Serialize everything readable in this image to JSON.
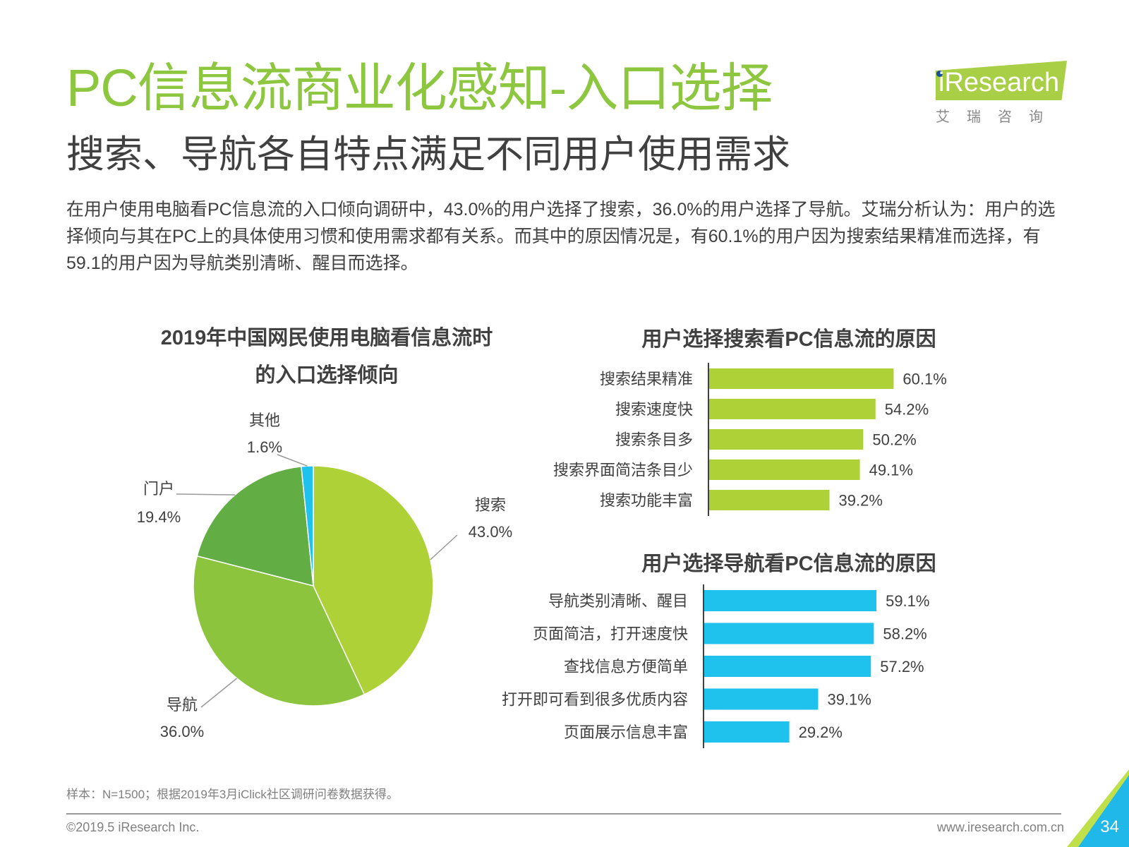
{
  "page": {
    "title": "PC信息流商业化感知-入口选择",
    "subtitle": "搜索、导航各自特点满足不同用户使用需求",
    "body": "在用户使用电脑看PC信息流的入口倾向调研中，43.0%的用户选择了搜索，36.0%的用户选择了导航。艾瑞分析认为：用户的选择倾向与其在PC上的具体使用习惯和使用需求都有关系。而其中的原因情况是，有60.1%的用户因为搜索结果精准而选择，有59.1的用户因为导航类别清晰、醒目而选择。",
    "logo_text": "iResearch",
    "logo_sub": "艾瑞咨询",
    "footnote": "样本：N=1500；根据2019年3月iClick社区调研问卷数据获得。",
    "copyright": "©2019.5 iResearch Inc.",
    "website": "www.iresearch.com.cn",
    "page_number": "34"
  },
  "colors": {
    "title_green": "#8dc63f",
    "pie_search": "#add136",
    "pie_nav": "#8cc43d",
    "pie_portal": "#62ad44",
    "pie_other": "#1fc1ed",
    "bar_search": "#add136",
    "bar_nav": "#1fc1ed",
    "corner_accent": "#1fb8e8"
  },
  "chart_data": [
    {
      "type": "pie",
      "title_lines": [
        "2019年中国网民使用电脑看信息流时",
        "的入口选择倾向"
      ],
      "slices": [
        {
          "label": "搜索",
          "value": 43.0,
          "value_label": "43.0%"
        },
        {
          "label": "导航",
          "value": 36.0,
          "value_label": "36.0%"
        },
        {
          "label": "门户",
          "value": 19.4,
          "value_label": "19.4%"
        },
        {
          "label": "其他",
          "value": 1.6,
          "value_label": "1.6%"
        }
      ]
    },
    {
      "type": "bar",
      "orientation": "horizontal",
      "title": "用户选择搜索看PC信息流的原因",
      "categories": [
        "搜索结果精准",
        "搜索速度快",
        "搜索条目多",
        "搜索界面简洁条目少",
        "搜索功能丰富"
      ],
      "values": [
        60.1,
        54.2,
        50.2,
        49.1,
        39.2
      ],
      "value_labels": [
        "60.1%",
        "54.2%",
        "50.2%",
        "49.1%",
        "39.2%"
      ]
    },
    {
      "type": "bar",
      "orientation": "horizontal",
      "title": "用户选择导航看PC信息流的原因",
      "categories": [
        "导航类别清晰、醒目",
        "页面简洁，打开速度快",
        "查找信息方便简单",
        "打开即可看到很多优质内容",
        "页面展示信息丰富"
      ],
      "values": [
        59.1,
        58.2,
        57.2,
        39.1,
        29.2
      ],
      "value_labels": [
        "59.1%",
        "58.2%",
        "57.2%",
        "39.1%",
        "29.2%"
      ]
    }
  ]
}
